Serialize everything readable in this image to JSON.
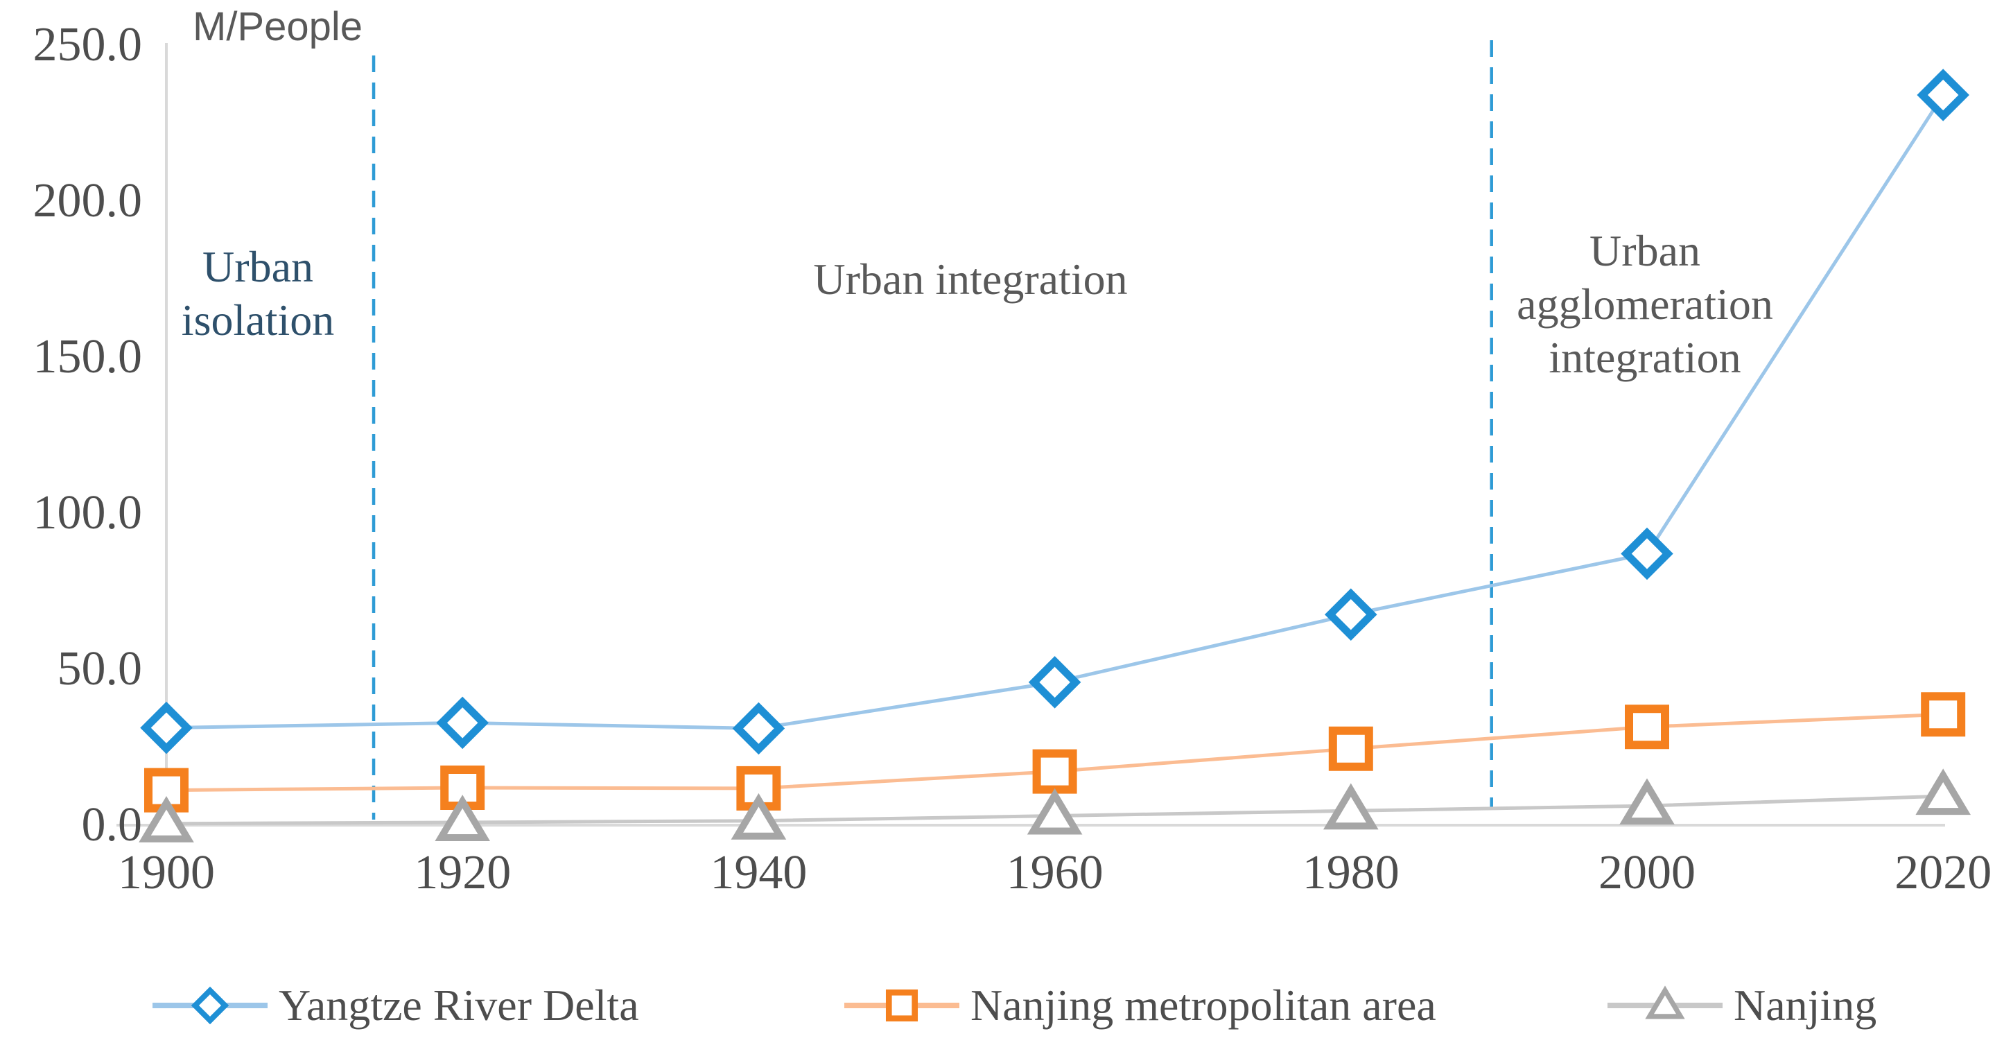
{
  "title": {
    "axis_unit": "M/People"
  },
  "y_axis": {
    "ticks": [
      {
        "label": "250.0",
        "value": 250
      },
      {
        "label": "200.0",
        "value": 200
      },
      {
        "label": "150.0",
        "value": 150
      },
      {
        "label": "100.0",
        "value": 100
      },
      {
        "label": "50.0",
        "value": 50
      },
      {
        "label": "0.0",
        "value": 0
      }
    ]
  },
  "x_axis": {
    "ticks": [
      "1900",
      "1920",
      "1940",
      "1960",
      "1980",
      "2000",
      "2020"
    ]
  },
  "phases": [
    {
      "lines": [
        "Urban",
        "isolation"
      ],
      "color": "#2E506B"
    },
    {
      "lines": [
        "Urban integration"
      ],
      "color": "#595959"
    },
    {
      "lines": [
        "Urban",
        "agglomeration",
        "integration"
      ],
      "color": "#595959"
    }
  ],
  "colors": {
    "axis_line": "#D9D9D9",
    "tick_text": "#4D4D4D",
    "divider": "#2E9BD5",
    "title_text": "#595959",
    "legend_text": "#4D4D4D"
  },
  "chart_data": {
    "type": "line",
    "x": [
      1900,
      1920,
      1940,
      1960,
      1980,
      2000,
      2020
    ],
    "series": [
      {
        "name": "Yangtze River Delta",
        "marker": "diamond",
        "values": [
          31.2,
          32.8,
          31.0,
          45.8,
          67.5,
          87.0,
          234.0
        ],
        "line_color": "#9CC6E9",
        "marker_color": "#1E8FD5"
      },
      {
        "name": "Nanjing metropolitan area",
        "marker": "square",
        "values": [
          11.2,
          12.0,
          11.8,
          17.2,
          24.5,
          31.5,
          35.5
        ],
        "line_color": "#FBBC92",
        "marker_color": "#F5801E"
      },
      {
        "name": "Nanjing",
        "marker": "triangle",
        "values": [
          0.5,
          0.9,
          1.4,
          3.0,
          4.6,
          6.2,
          9.3
        ],
        "line_color": "#C8C8C8",
        "marker_color": "#A6A6A6"
      }
    ],
    "ylabel": "M/People",
    "ylim": [
      0,
      250
    ],
    "yticks": [
      0,
      50,
      100,
      150,
      200,
      250
    ],
    "xlim": [
      1900,
      2020
    ],
    "grid": false,
    "legend_position": "bottom",
    "phase_dividers_x": [
      1914,
      1989.5
    ],
    "annotations": [
      "Urban isolation",
      "Urban integration",
      "Urban agglomeration integration"
    ]
  }
}
